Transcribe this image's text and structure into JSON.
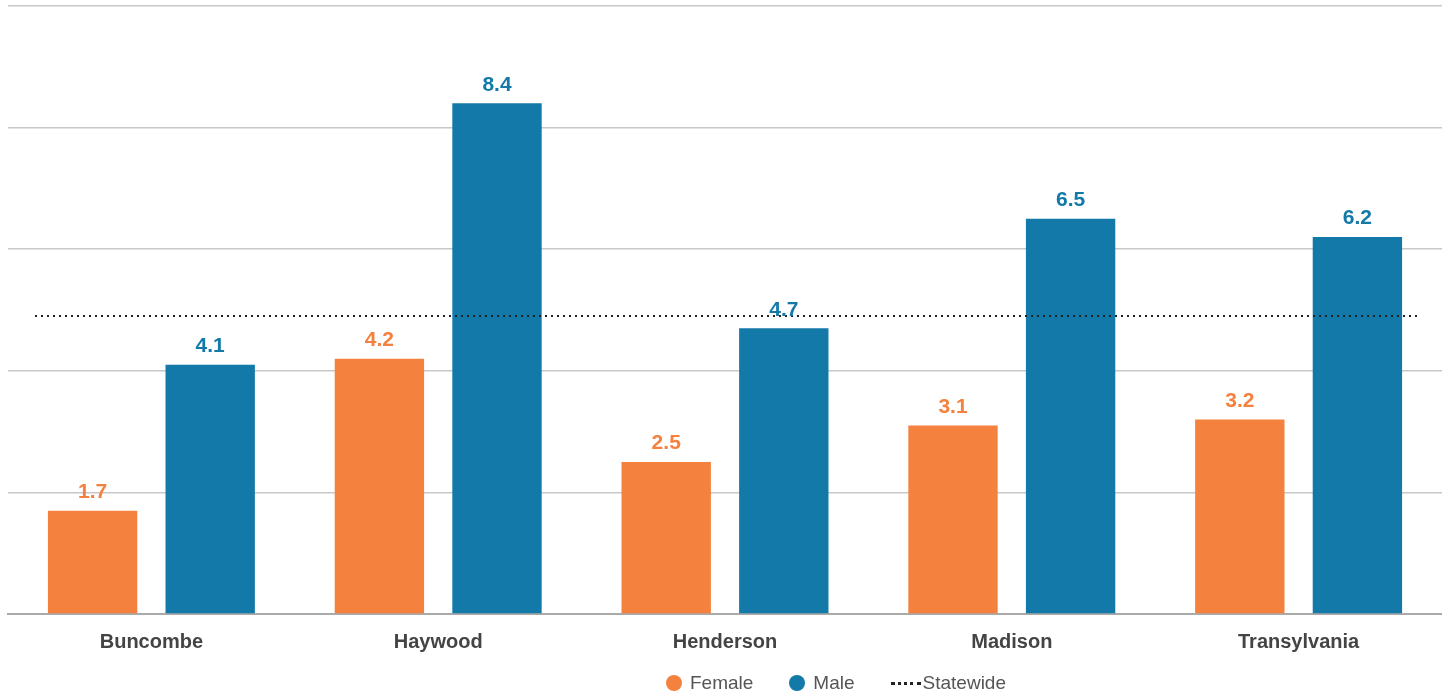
{
  "chart_data": {
    "type": "bar",
    "categories": [
      "Buncombe",
      "Haywood",
      "Henderson",
      "Madison",
      "Transylvania"
    ],
    "series": [
      {
        "name": "Female",
        "color": "#f5813f",
        "values": [
          1.7,
          4.2,
          2.5,
          3.1,
          3.2
        ]
      },
      {
        "name": "Male",
        "color": "#1279a8",
        "values": [
          4.1,
          8.4,
          4.7,
          6.5,
          6.2
        ]
      }
    ],
    "ylim": [
      0,
      10
    ],
    "yticks": [
      {
        "value": 0,
        "label": null
      },
      {
        "value": 2,
        "label": null
      },
      {
        "value": 4,
        "label": null
      },
      {
        "value": 6,
        "label": null
      },
      {
        "value": 8,
        "label": null
      },
      {
        "value": 10,
        "label": null
      }
    ],
    "tick_labels": "x",
    "grid": "y",
    "data_labels": true,
    "legend": "bottom",
    "ref_lines": [
      {
        "axis": "y",
        "value": 4.9,
        "label": "Statewide",
        "color": "#222222",
        "line_style": "dotted"
      }
    ]
  }
}
